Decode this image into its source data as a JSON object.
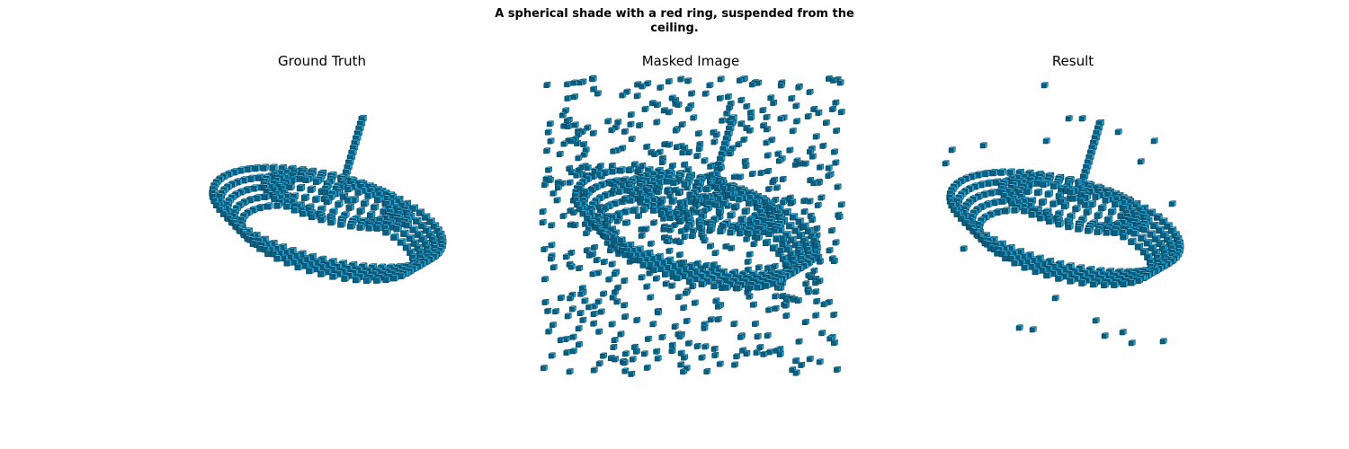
{
  "figure": {
    "suptitle_line1": "A spherical shade with a red ring, suspended from the",
    "suptitle_line2": "ceiling."
  },
  "panels": [
    {
      "title": "Ground Truth",
      "variant": "clean"
    },
    {
      "title": "Masked Image",
      "variant": "noisy"
    },
    {
      "title": "Result",
      "variant": "sparse-noise"
    }
  ],
  "colors": {
    "voxel_face": "#1aa3d6",
    "voxel_top": "#3bbbe8",
    "voxel_side": "#0b5f80",
    "voxel_edge": "#063a50"
  }
}
